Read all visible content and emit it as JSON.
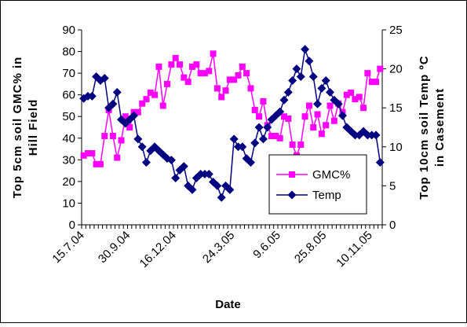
{
  "chart_data": {
    "type": "line",
    "y_label": [
      "Top 5cm soil GMC% in",
      "Hill Field"
    ],
    "y2_label": [
      "Top 10cm soil Temp ºC",
      "in Casement"
    ],
    "x_label": "Date",
    "categories": [
      "15.7.04",
      null,
      null,
      null,
      null,
      null,
      null,
      null,
      null,
      null,
      null,
      "30.9.04",
      null,
      null,
      null,
      null,
      null,
      null,
      null,
      null,
      null,
      null,
      "16.12.04",
      null,
      null,
      null,
      null,
      null,
      null,
      null,
      null,
      null,
      null,
      null,
      null,
      null,
      "24.3.05",
      null,
      null,
      null,
      null,
      null,
      null,
      null,
      null,
      null,
      null,
      "9.6.05",
      null,
      null,
      null,
      null,
      null,
      null,
      null,
      null,
      null,
      null,
      "25.8.05",
      null,
      null,
      null,
      null,
      null,
      null,
      null,
      null,
      null,
      null,
      "10.11.05",
      null,
      null
    ],
    "series": [
      {
        "name": "GMC%",
        "color": "#ff00ff",
        "marker": "square",
        "values": [
          32,
          33,
          33,
          28,
          28,
          41,
          53,
          41,
          31,
          39,
          50,
          45,
          52,
          52,
          56,
          58,
          61,
          60,
          73,
          55,
          65,
          74,
          77,
          74,
          68,
          66,
          73,
          74,
          70,
          70,
          71,
          79,
          63,
          59,
          62,
          67,
          67,
          69,
          73,
          70,
          63,
          53,
          50,
          57,
          46,
          41,
          41,
          40,
          50,
          49,
          37,
          32,
          37,
          50,
          55,
          45,
          51,
          42,
          46,
          55,
          48,
          56,
          52,
          60,
          61,
          58,
          59,
          54,
          70,
          66,
          66,
          72
        ]
      },
      {
        "name": "Temp",
        "color": "#000080",
        "marker": "diamond",
        "axis": "y2",
        "values": [
          16.2,
          16.5,
          16.5,
          19,
          18.5,
          18.8,
          15,
          15.5,
          17,
          13.5,
          13,
          13.5,
          14,
          11,
          10,
          8,
          9.5,
          10,
          9.5,
          9,
          8.5,
          8.3,
          6,
          7,
          7.5,
          5,
          4.5,
          6,
          6.5,
          6.5,
          6.5,
          5.5,
          5,
          3.5,
          5,
          4.5,
          11,
          10,
          10,
          8.5,
          8,
          10.5,
          12.5,
          11,
          12.5,
          13.5,
          14,
          14.5,
          16,
          17,
          18.5,
          20,
          19,
          22.5,
          21,
          19,
          15.5,
          17.5,
          18.5,
          17,
          16,
          15.5,
          14,
          12.5,
          12,
          11.5,
          11.5,
          12,
          11.5,
          11.5,
          11.5,
          8
        ]
      }
    ],
    "ylim": [
      0,
      90
    ],
    "yticks": [
      0,
      10,
      20,
      30,
      40,
      50,
      60,
      70,
      80,
      90
    ],
    "y2lim": [
      0,
      25
    ],
    "y2ticks": [
      0,
      5,
      10,
      15,
      20,
      25
    ],
    "grid": false
  }
}
